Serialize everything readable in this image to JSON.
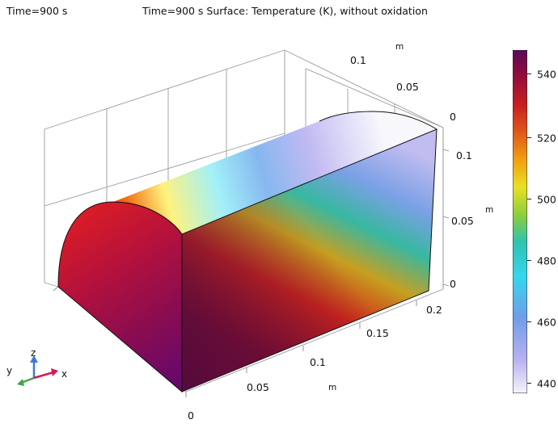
{
  "header": {
    "time_label": "Time=900 s",
    "plot_title": "Time=900 s Surface: Temperature (K), without oxidation"
  },
  "axes": {
    "x_unit": "m",
    "y_unit": "m",
    "z_unit": "m",
    "x_ticks": [
      "0",
      "0.05",
      "0.1",
      "0.15",
      "0.2"
    ],
    "y_ticks": [
      "0",
      "0.05",
      "0.1"
    ],
    "z_ticks": [
      "0",
      "0.05",
      "0.1"
    ]
  },
  "triad": {
    "x": "x",
    "y": "y",
    "z": "z"
  },
  "colorbar": {
    "min": 436,
    "max": 548,
    "ticks": [
      "540",
      "520",
      "500",
      "480",
      "460",
      "440"
    ],
    "colors": [
      "#f4f4fb",
      "#b8b0f0",
      "#6f9de8",
      "#36d6ee",
      "#2fc2b0",
      "#8ccf3a",
      "#e8e025",
      "#f0a010",
      "#e05818",
      "#c81e1e",
      "#8e0c3c",
      "#5a0a5a"
    ]
  }
}
